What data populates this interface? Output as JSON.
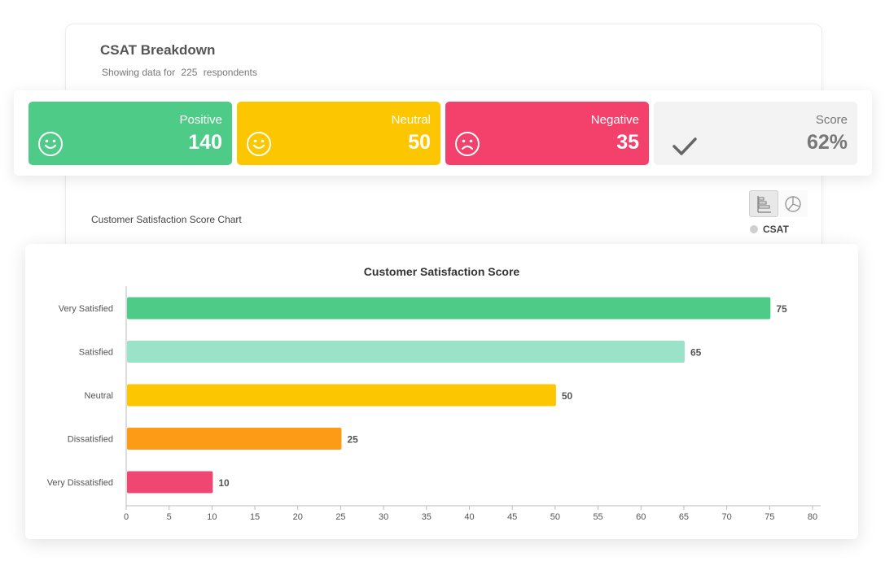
{
  "breakdown": {
    "title": "CSAT Breakdown",
    "sub_prefix": "Showing data for",
    "respondents": "225",
    "sub_suffix": "respondents"
  },
  "stats": [
    {
      "label": "Positive",
      "value": "140",
      "color": "#4ecb87",
      "icon": "smile-icon"
    },
    {
      "label": "Neutral",
      "value": "50",
      "color": "#fcc700",
      "icon": "smile-icon"
    },
    {
      "label": "Negative",
      "value": "35",
      "color": "#f4416c",
      "icon": "frown-icon"
    },
    {
      "label": "Score",
      "value": "62%",
      "color": "#f3f3f3",
      "icon": "check-icon"
    }
  ],
  "chart_section": {
    "caption": "Customer Satisfaction Score Chart",
    "legend": "CSAT"
  },
  "chart_data": {
    "type": "bar",
    "orientation": "horizontal",
    "title": "Customer Satisfaction Score",
    "categories": [
      "Very Satisfied",
      "Satisfied",
      "Neutral",
      "Dissatisfied",
      "Very Dissatisfied"
    ],
    "values": [
      75,
      65,
      50,
      25,
      10
    ],
    "colors": [
      "#4ecb87",
      "#9ae3c8",
      "#fcc700",
      "#fb9b16",
      "#f04673"
    ],
    "xlim": [
      0,
      80
    ],
    "xticks": [
      0,
      5,
      10,
      15,
      20,
      25,
      30,
      35,
      40,
      45,
      50,
      55,
      60,
      65,
      70,
      75,
      80
    ],
    "xlabel": "",
    "ylabel": "",
    "grid": false
  }
}
